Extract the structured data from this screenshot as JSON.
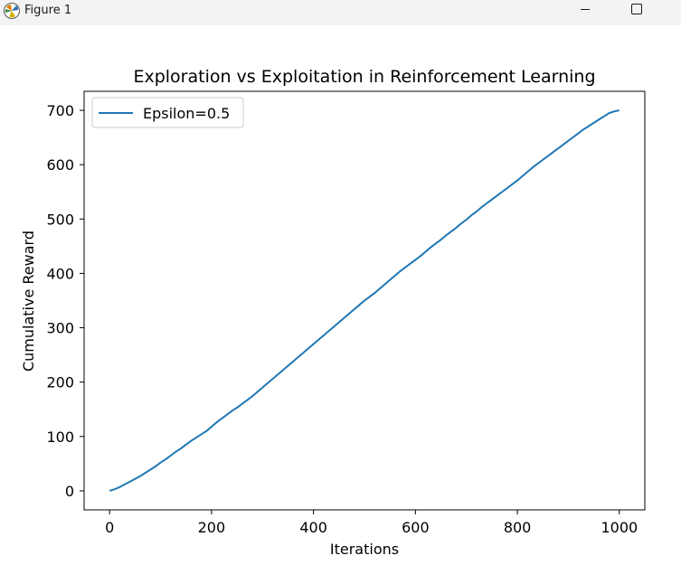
{
  "window": {
    "title": "Figure 1",
    "icon": "matplotlib-logo-icon",
    "buttons": [
      "minimize-icon",
      "maximize-icon"
    ]
  },
  "chart_data": {
    "type": "line",
    "title": "Exploration vs Exploitation in Reinforcement Learning",
    "xlabel": "Iterations",
    "ylabel": "Cumulative Reward",
    "xlim": [
      -50,
      1050
    ],
    "ylim": [
      -35,
      735
    ],
    "xticks": [
      0,
      200,
      400,
      600,
      800,
      1000
    ],
    "yticks": [
      0,
      100,
      200,
      300,
      400,
      500,
      600,
      700
    ],
    "grid": false,
    "legend": "upper left",
    "series": [
      {
        "name": "Epsilon=0.5",
        "color": "#1f77b4",
        "x": [
          0,
          10,
          20,
          30,
          40,
          50,
          60,
          70,
          80,
          90,
          100,
          110,
          120,
          130,
          140,
          150,
          160,
          170,
          180,
          190,
          200,
          210,
          220,
          230,
          240,
          250,
          260,
          270,
          280,
          290,
          300,
          310,
          320,
          330,
          340,
          350,
          360,
          370,
          380,
          390,
          400,
          410,
          420,
          430,
          440,
          450,
          460,
          470,
          480,
          490,
          500,
          510,
          520,
          530,
          540,
          550,
          560,
          570,
          580,
          590,
          600,
          610,
          620,
          630,
          640,
          650,
          660,
          670,
          680,
          690,
          700,
          710,
          720,
          730,
          740,
          750,
          760,
          770,
          780,
          790,
          800,
          810,
          820,
          830,
          840,
          850,
          860,
          870,
          880,
          890,
          900,
          910,
          920,
          930,
          940,
          950,
          960,
          970,
          980,
          990,
          1000
        ],
        "y": [
          0,
          3,
          7,
          12,
          17,
          22,
          27,
          33,
          39,
          45,
          52,
          58,
          65,
          72,
          78,
          85,
          92,
          98,
          104,
          110,
          118,
          126,
          133,
          140,
          147,
          153,
          160,
          167,
          174,
          182,
          190,
          198,
          206,
          214,
          222,
          230,
          238,
          246,
          254,
          262,
          270,
          278,
          286,
          294,
          302,
          310,
          318,
          326,
          334,
          342,
          350,
          357,
          364,
          372,
          380,
          388,
          396,
          404,
          411,
          418,
          425,
          432,
          440,
          448,
          455,
          462,
          470,
          477,
          484,
          492,
          499,
          507,
          514,
          522,
          529,
          536,
          543,
          550,
          557,
          564,
          571,
          579,
          587,
          595,
          602,
          609,
          616,
          623,
          630,
          637,
          644,
          651,
          658,
          665,
          671,
          677,
          683,
          689,
          695,
          698,
          700
        ]
      }
    ]
  }
}
